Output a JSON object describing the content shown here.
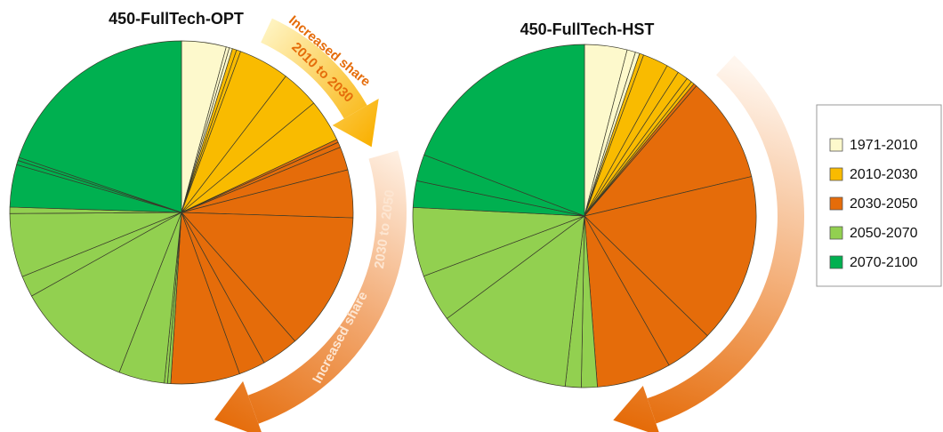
{
  "chart_data": [
    {
      "type": "pie",
      "title": "450-FullTech-OPT",
      "values": [
        [
          4.2,
          0.3,
          0.3
        ],
        [
          0.4,
          0.4,
          4.8,
          3.6,
          4.0
        ],
        [
          0.3,
          0.5,
          2.2,
          4.5,
          13.0,
          3.5,
          2.5,
          6.5
        ],
        [
          0.3,
          0.3,
          4.3,
          11.0,
          2.0,
          6.0,
          0.6
        ],
        [
          4.0,
          0.4,
          0.3,
          19.8
        ]
      ]
    },
    {
      "type": "pie",
      "title": "450-FullTech-HST",
      "values": [
        [
          4.0,
          0.8,
          0.4
        ],
        [
          0.4,
          2.4,
          1.2,
          1.0,
          0.5,
          0.3
        ],
        [
          0.3,
          10.0,
          16.0,
          4.5,
          7.0
        ],
        [
          1.5,
          1.5,
          13.0,
          4.5,
          6.5
        ],
        [
          2.5,
          2.5,
          19.2
        ]
      ]
    }
  ],
  "legend": {
    "position": "right",
    "series": [
      {
        "name": "1971-2010",
        "color": "#fdf9cc"
      },
      {
        "name": "2010-2030",
        "color": "#f9bb00"
      },
      {
        "name": "2030-2050",
        "color": "#e56c0a"
      },
      {
        "name": "2050-2070",
        "color": "#92d050"
      },
      {
        "name": "2070-2100",
        "color": "#00b050"
      }
    ]
  },
  "annotations": {
    "first": [
      "Increased share",
      "2010 to 2030"
    ],
    "second": [
      "Increased share",
      "2030 to 2050"
    ]
  }
}
